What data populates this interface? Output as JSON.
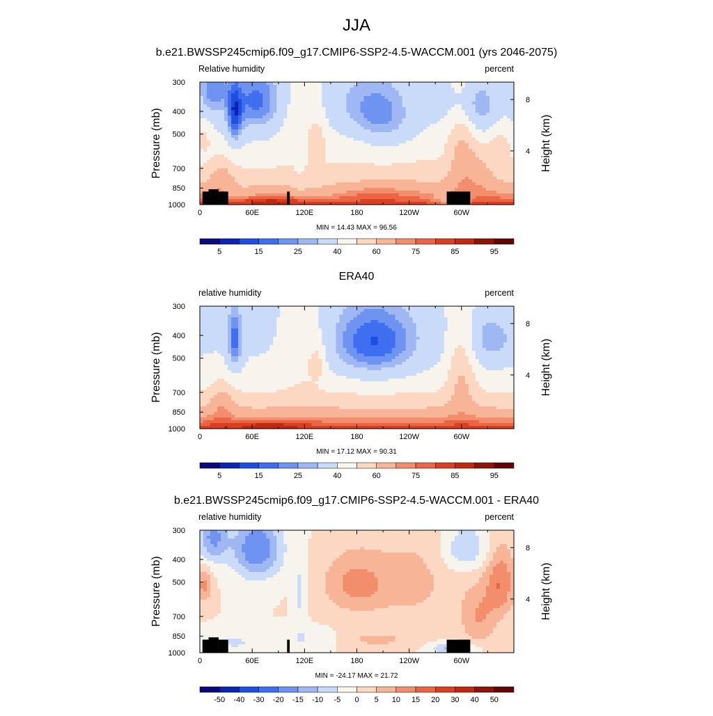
{
  "figure": {
    "title": "JJA"
  },
  "chart_data": [
    {
      "type": "heatmap",
      "title": "b.e21.BWSSP245cmip6.f09_g17.CMIP6-SSP2-4.5-WACCM.001 (yrs 2046-2075)",
      "left_label": "Relative humidity",
      "right_label": "percent",
      "ylabel": "Pressure (mb)",
      "y2label": "Height (km)",
      "xticks": [
        "0",
        "60E",
        "120E",
        "180",
        "120W",
        "60W"
      ],
      "yticks": [
        "300",
        "400",
        "500",
        "700",
        "850",
        "1000"
      ],
      "y2ticks": [
        "8",
        "4"
      ],
      "min_label": "MIN =",
      "min_value": "14.43",
      "max_label": "MAX =",
      "max_value": "96.56",
      "colorbar_labels": [
        "5",
        "15",
        "25",
        "40",
        "60",
        "75",
        "85",
        "95"
      ],
      "colormap": [
        "#0a0a7a",
        "#0d23b4",
        "#1f4fe0",
        "#3f6ff0",
        "#6f93f0",
        "#9fb7f3",
        "#c9dbf8",
        "#f7f4ee",
        "#fcd8c2",
        "#f8b496",
        "#f28e6c",
        "#ea6544",
        "#dc3e21",
        "#c02810",
        "#8e140a",
        "#620606"
      ],
      "mode": "abs",
      "terrain": true
    },
    {
      "type": "heatmap",
      "title": "ERA40",
      "left_label": "relative humidity",
      "right_label": "percent",
      "ylabel": "Pressure (mb)",
      "y2label": "Height (km)",
      "xticks": [
        "0",
        "60E",
        "120E",
        "180",
        "120W",
        "60W"
      ],
      "yticks": [
        "300",
        "400",
        "500",
        "700",
        "850",
        "1000"
      ],
      "y2ticks": [
        "8",
        "4"
      ],
      "min_label": "MIN =",
      "min_value": "17.12",
      "max_label": "MAX =",
      "max_value": "90.31",
      "colorbar_labels": [
        "5",
        "15",
        "25",
        "40",
        "60",
        "75",
        "85",
        "95"
      ],
      "colormap": [
        "#0a0a7a",
        "#0d23b4",
        "#1f4fe0",
        "#3f6ff0",
        "#6f93f0",
        "#9fb7f3",
        "#c9dbf8",
        "#f7f4ee",
        "#fcd8c2",
        "#f8b496",
        "#f28e6c",
        "#ea6544",
        "#dc3e21",
        "#c02810",
        "#8e140a",
        "#620606"
      ],
      "mode": "obs",
      "terrain": false
    },
    {
      "type": "heatmap",
      "title": "b.e21.BWSSP245cmip6.f09_g17.CMIP6-SSP2-4.5-WACCM.001 - ERA40",
      "left_label": "relative humidity",
      "right_label": "percent",
      "ylabel": "Pressure (mb)",
      "y2label": "Height (km)",
      "xticks": [
        "0",
        "60E",
        "120E",
        "180",
        "120W",
        "60W"
      ],
      "yticks": [
        "300",
        "400",
        "500",
        "700",
        "850",
        "1000"
      ],
      "y2ticks": [
        "8",
        "4"
      ],
      "min_label": "MIN =",
      "min_value": "-24.17",
      "max_label": "MAX =",
      "max_value": "21.72",
      "colorbar_labels": [
        "-50",
        "-40",
        "-30",
        "-20",
        "-15",
        "-10",
        "-5",
        "0",
        "5",
        "10",
        "15",
        "20",
        "30",
        "40",
        "50"
      ],
      "colormap": [
        "#0a0a7a",
        "#0d23b4",
        "#1f4fe0",
        "#3f6ff0",
        "#6f93f0",
        "#9fb7f3",
        "#c9dbf8",
        "#f7f4ee",
        "#fcd8c2",
        "#f8b496",
        "#f28e6c",
        "#ea6544",
        "#dc3e21",
        "#c02810",
        "#8e140a",
        "#620606"
      ],
      "mode": "diff",
      "terrain": true
    }
  ]
}
